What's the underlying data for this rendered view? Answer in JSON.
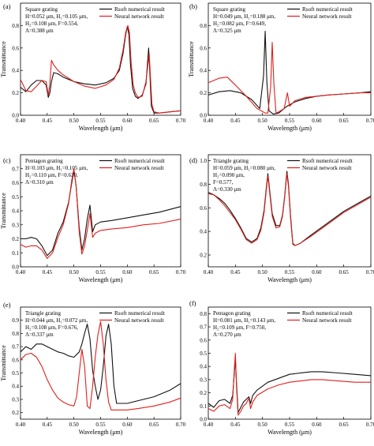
{
  "colors": {
    "rsoft": "#111111",
    "neural": "#e0201b"
  },
  "chart_data": [
    {
      "type": "line",
      "panel": "(a)",
      "params": [
        "Square grating",
        "H=0.052 μm, H₁=0.105 μm,",
        "H₂=0.108 μm, F=0.554,",
        "Λ=0.388 μm"
      ],
      "xlabel": "Wavelength (μm)",
      "ylabel": "Transmittance",
      "xlim": [
        0.4,
        0.7
      ],
      "ylim": [
        0,
        1.0
      ],
      "xticks": [
        "0.40",
        "0.45",
        "0.50",
        "0.55",
        "0.60",
        "0.65",
        "0.70"
      ],
      "yticks": [
        "0.0",
        "0.2",
        "0.4",
        "0.6",
        "0.8"
      ],
      "series": [
        {
          "name": "Rsoft numerical result",
          "color": "#111111",
          "x": [
            0.4,
            0.41,
            0.42,
            0.43,
            0.44,
            0.448,
            0.452,
            0.455,
            0.458,
            0.462,
            0.47,
            0.48,
            0.5,
            0.52,
            0.54,
            0.56,
            0.575,
            0.585,
            0.592,
            0.597,
            0.6,
            0.603,
            0.606,
            0.61,
            0.615,
            0.62,
            0.628,
            0.635,
            0.64,
            0.642,
            0.645,
            0.65,
            0.66,
            0.68,
            0.7
          ],
          "values": [
            0.25,
            0.21,
            0.27,
            0.31,
            0.31,
            0.27,
            0.16,
            0.2,
            0.3,
            0.38,
            0.37,
            0.34,
            0.3,
            0.28,
            0.27,
            0.29,
            0.33,
            0.4,
            0.55,
            0.72,
            0.79,
            0.72,
            0.45,
            0.24,
            0.17,
            0.15,
            0.18,
            0.28,
            0.6,
            0.4,
            0.08,
            0.02,
            0.02,
            0.03,
            0.04
          ]
        },
        {
          "name": "Neural network result",
          "color": "#e0201b",
          "x": [
            0.4,
            0.41,
            0.42,
            0.43,
            0.44,
            0.448,
            0.452,
            0.455,
            0.458,
            0.462,
            0.47,
            0.48,
            0.5,
            0.52,
            0.54,
            0.56,
            0.575,
            0.585,
            0.592,
            0.597,
            0.601,
            0.604,
            0.607,
            0.611,
            0.615,
            0.62,
            0.628,
            0.635,
            0.641,
            0.643,
            0.646,
            0.65,
            0.66,
            0.68,
            0.7
          ],
          "values": [
            0.32,
            0.22,
            0.21,
            0.26,
            0.31,
            0.3,
            0.18,
            0.28,
            0.49,
            0.45,
            0.4,
            0.36,
            0.3,
            0.26,
            0.24,
            0.27,
            0.32,
            0.42,
            0.58,
            0.74,
            0.8,
            0.74,
            0.48,
            0.27,
            0.2,
            0.16,
            0.17,
            0.3,
            0.55,
            0.38,
            0.1,
            0.03,
            0.02,
            0.03,
            0.04
          ]
        }
      ]
    },
    {
      "type": "line",
      "panel": "(b)",
      "params": [
        "Square grating",
        "H=0.049 μm, H₁=0.188 μm,",
        "H₂=0.082 μm, F=0.649,",
        "Λ=0.325 μm"
      ],
      "xlabel": "Wavelength (μm)",
      "ylabel": "Transmittance",
      "xlim": [
        0.4,
        0.7
      ],
      "ylim": [
        0,
        1.0
      ],
      "xticks": [
        "0.40",
        "0.45",
        "0.50",
        "0.55",
        "0.60",
        "0.65",
        "0.70"
      ],
      "yticks": [
        "0.0",
        "0.2",
        "0.4",
        "0.6",
        "0.8"
      ],
      "series": [
        {
          "name": "Rsoft numerical result",
          "color": "#111111",
          "x": [
            0.4,
            0.42,
            0.44,
            0.46,
            0.48,
            0.495,
            0.502,
            0.505,
            0.508,
            0.512,
            0.52,
            0.53,
            0.545,
            0.56,
            0.58,
            0.6,
            0.62,
            0.65,
            0.68,
            0.7
          ],
          "values": [
            0.18,
            0.21,
            0.22,
            0.2,
            0.14,
            0.06,
            0.35,
            0.75,
            0.3,
            0.04,
            0.01,
            0.02,
            0.08,
            0.12,
            0.15,
            0.17,
            0.18,
            0.19,
            0.2,
            0.21
          ]
        },
        {
          "name": "Neural network result",
          "color": "#e0201b",
          "x": [
            0.4,
            0.42,
            0.435,
            0.45,
            0.47,
            0.49,
            0.505,
            0.51,
            0.515,
            0.518,
            0.521,
            0.525,
            0.53,
            0.54,
            0.546,
            0.55,
            0.56,
            0.58,
            0.6,
            0.62,
            0.65,
            0.68,
            0.7
          ],
          "values": [
            0.29,
            0.33,
            0.34,
            0.27,
            0.17,
            0.06,
            0.02,
            0.02,
            0.25,
            0.65,
            0.28,
            0.02,
            0.03,
            0.06,
            0.2,
            0.08,
            0.13,
            0.16,
            0.17,
            0.18,
            0.19,
            0.2,
            0.2
          ]
        }
      ]
    },
    {
      "type": "line",
      "panel": "(c)",
      "params": [
        "Pentagon grating",
        "H=0.103 μm, H₁=0.105 μm,",
        "H₂=0.110 μm, F=0.630,",
        "Λ=0.310 μm"
      ],
      "xlabel": "Wavelength (μm)",
      "ylabel": "Transmittance",
      "xlim": [
        0.4,
        0.7
      ],
      "ylim": [
        0,
        0.8
      ],
      "xticks": [
        "0.40",
        "0.45",
        "0.50",
        "0.55",
        "0.60",
        "0.65",
        "0.70"
      ],
      "yticks": [
        "0.0",
        "0.1",
        "0.2",
        "0.3",
        "0.4",
        "0.5",
        "0.6",
        "0.7"
      ],
      "series": [
        {
          "name": "Rsoft numerical result",
          "color": "#111111",
          "x": [
            0.4,
            0.41,
            0.42,
            0.43,
            0.44,
            0.45,
            0.46,
            0.47,
            0.48,
            0.49,
            0.496,
            0.5,
            0.504,
            0.51,
            0.515,
            0.52,
            0.525,
            0.53,
            0.535,
            0.54,
            0.55,
            0.57,
            0.6,
            0.63,
            0.66,
            0.7
          ],
          "values": [
            0.2,
            0.2,
            0.21,
            0.2,
            0.15,
            0.08,
            0.12,
            0.24,
            0.32,
            0.46,
            0.6,
            0.69,
            0.58,
            0.28,
            0.12,
            0.2,
            0.34,
            0.44,
            0.25,
            0.3,
            0.32,
            0.33,
            0.35,
            0.37,
            0.39,
            0.43
          ]
        },
        {
          "name": "Neural network result",
          "color": "#e0201b",
          "x": [
            0.4,
            0.41,
            0.42,
            0.43,
            0.44,
            0.45,
            0.46,
            0.47,
            0.48,
            0.49,
            0.496,
            0.5,
            0.504,
            0.51,
            0.515,
            0.52,
            0.525,
            0.53,
            0.535,
            0.54,
            0.55,
            0.57,
            0.6,
            0.63,
            0.66,
            0.7
          ],
          "values": [
            0.16,
            0.14,
            0.15,
            0.15,
            0.12,
            0.06,
            0.1,
            0.21,
            0.3,
            0.45,
            0.62,
            0.7,
            0.58,
            0.25,
            0.09,
            0.15,
            0.26,
            0.38,
            0.21,
            0.24,
            0.26,
            0.27,
            0.28,
            0.3,
            0.31,
            0.34
          ]
        }
      ]
    },
    {
      "type": "line",
      "panel": "(d)",
      "params": [
        "Triangle grating",
        "H=0.059 μm, H₁=0.080 μm,",
        "H₂=0.090 μm,",
        "F=0.577,",
        "Λ=0.330 μm"
      ],
      "xlabel": "Wavelength (μm)",
      "ylabel": "",
      "xlim": [
        0.4,
        0.7
      ],
      "ylim": [
        0.1,
        1.05
      ],
      "xticks": [
        "0.40",
        "0.45",
        "0.50",
        "0.55",
        "0.60",
        "0.65",
        "0.70"
      ],
      "yticks": [
        "0.2",
        "0.4",
        "0.6",
        "0.8",
        "1.0"
      ],
      "series": [
        {
          "name": "Rsoft numerical result",
          "color": "#111111",
          "x": [
            0.4,
            0.41,
            0.42,
            0.43,
            0.44,
            0.45,
            0.46,
            0.47,
            0.48,
            0.49,
            0.497,
            0.503,
            0.507,
            0.51,
            0.513,
            0.518,
            0.525,
            0.532,
            0.537,
            0.541,
            0.545,
            0.548,
            0.552,
            0.556,
            0.56,
            0.57,
            0.59,
            0.62,
            0.65,
            0.7
          ],
          "values": [
            0.73,
            0.71,
            0.68,
            0.64,
            0.58,
            0.51,
            0.43,
            0.34,
            0.31,
            0.34,
            0.43,
            0.58,
            0.77,
            0.89,
            0.76,
            0.55,
            0.45,
            0.45,
            0.54,
            0.7,
            0.91,
            0.8,
            0.52,
            0.3,
            0.28,
            0.3,
            0.37,
            0.47,
            0.57,
            0.7
          ]
        },
        {
          "name": "Neural network result",
          "color": "#e0201b",
          "x": [
            0.4,
            0.41,
            0.42,
            0.43,
            0.44,
            0.45,
            0.46,
            0.47,
            0.48,
            0.49,
            0.497,
            0.503,
            0.507,
            0.51,
            0.513,
            0.518,
            0.525,
            0.532,
            0.537,
            0.541,
            0.545,
            0.548,
            0.552,
            0.556,
            0.56,
            0.57,
            0.59,
            0.62,
            0.65,
            0.7
          ],
          "values": [
            0.72,
            0.71,
            0.67,
            0.62,
            0.56,
            0.5,
            0.42,
            0.33,
            0.3,
            0.33,
            0.41,
            0.56,
            0.75,
            0.87,
            0.74,
            0.53,
            0.43,
            0.44,
            0.53,
            0.69,
            0.89,
            0.78,
            0.5,
            0.29,
            0.28,
            0.3,
            0.36,
            0.46,
            0.56,
            0.69
          ]
        }
      ]
    },
    {
      "type": "line",
      "panel": "(e)",
      "params": [
        "Triangle grating",
        "H=0.044 μm, H₁=0.072 μm,",
        "H₂=0.108 μm, F=0.676,",
        "Λ=0.337 μm"
      ],
      "xlabel": "Wavelength (μm)",
      "ylabel": "Transmittance",
      "xlim": [
        0.4,
        0.7
      ],
      "ylim": [
        0.15,
        1.0
      ],
      "xticks": [
        "0.40",
        "0.45",
        "0.50",
        "0.55",
        "0.60",
        "0.65",
        "0.70"
      ],
      "yticks": [
        "0.2",
        "0.3",
        "0.4",
        "0.5",
        "0.6",
        "0.7",
        "0.8",
        "0.9"
      ],
      "series": [
        {
          "name": "Rsoft numerical result",
          "color": "#111111",
          "x": [
            0.4,
            0.41,
            0.42,
            0.43,
            0.44,
            0.45,
            0.46,
            0.47,
            0.48,
            0.49,
            0.5,
            0.51,
            0.515,
            0.52,
            0.525,
            0.53,
            0.535,
            0.54,
            0.545,
            0.55,
            0.555,
            0.56,
            0.565,
            0.57,
            0.575,
            0.58,
            0.6,
            0.62,
            0.65,
            0.68,
            0.7
          ],
          "values": [
            0.66,
            0.7,
            0.68,
            0.72,
            0.72,
            0.7,
            0.68,
            0.66,
            0.65,
            0.63,
            0.62,
            0.66,
            0.72,
            0.8,
            0.87,
            0.76,
            0.52,
            0.4,
            0.3,
            0.37,
            0.55,
            0.78,
            0.87,
            0.72,
            0.4,
            0.27,
            0.27,
            0.29,
            0.32,
            0.37,
            0.42
          ]
        },
        {
          "name": "Neural network result",
          "color": "#e0201b",
          "x": [
            0.4,
            0.41,
            0.42,
            0.43,
            0.44,
            0.45,
            0.46,
            0.47,
            0.48,
            0.49,
            0.5,
            0.505,
            0.51,
            0.515,
            0.52,
            0.525,
            0.53,
            0.535,
            0.54,
            0.545,
            0.55,
            0.555,
            0.56,
            0.565,
            0.57,
            0.58,
            0.6,
            0.62,
            0.65,
            0.68,
            0.7
          ],
          "values": [
            0.6,
            0.64,
            0.65,
            0.62,
            0.55,
            0.45,
            0.37,
            0.31,
            0.28,
            0.26,
            0.25,
            0.32,
            0.5,
            0.68,
            0.55,
            0.25,
            0.23,
            0.4,
            0.62,
            0.79,
            0.89,
            0.72,
            0.45,
            0.28,
            0.22,
            0.22,
            0.22,
            0.23,
            0.25,
            0.28,
            0.31
          ]
        }
      ]
    },
    {
      "type": "line",
      "panel": "(f)",
      "params": [
        "Pentagon grating",
        "H=0.081 μm, H₁=0.143 μm,",
        "H₂=0.109 μm, F=0.750,",
        "Λ=0.270 μm"
      ],
      "xlabel": "Wavelength (μm)",
      "ylabel": "",
      "xlim": [
        0.4,
        0.7
      ],
      "ylim": [
        0,
        0.85
      ],
      "xticks": [
        "0.40",
        "0.45",
        "0.50",
        "0.55",
        "0.60",
        "0.65",
        "0.70"
      ],
      "yticks": [
        "0.0",
        "0.1",
        "0.2",
        "0.3",
        "0.4",
        "0.5",
        "0.6",
        "0.7",
        "0.8"
      ],
      "series": [
        {
          "name": "Rsoft numerical result",
          "color": "#111111",
          "x": [
            0.4,
            0.41,
            0.42,
            0.43,
            0.44,
            0.445,
            0.448,
            0.45,
            0.452,
            0.455,
            0.46,
            0.465,
            0.47,
            0.475,
            0.478,
            0.482,
            0.49,
            0.51,
            0.53,
            0.55,
            0.57,
            0.59,
            0.61,
            0.64,
            0.67,
            0.7
          ],
          "values": [
            0.12,
            0.09,
            0.14,
            0.15,
            0.12,
            0.18,
            0.35,
            0.46,
            0.28,
            0.05,
            0.09,
            0.13,
            0.15,
            0.17,
            0.12,
            0.18,
            0.22,
            0.28,
            0.31,
            0.34,
            0.35,
            0.36,
            0.36,
            0.35,
            0.34,
            0.33
          ]
        },
        {
          "name": "Neural network result",
          "color": "#e0201b",
          "x": [
            0.4,
            0.41,
            0.42,
            0.43,
            0.44,
            0.445,
            0.448,
            0.45,
            0.452,
            0.455,
            0.46,
            0.465,
            0.47,
            0.475,
            0.478,
            0.482,
            0.49,
            0.51,
            0.53,
            0.55,
            0.57,
            0.59,
            0.61,
            0.64,
            0.67,
            0.7
          ],
          "values": [
            0.08,
            0.06,
            0.1,
            0.11,
            0.08,
            0.15,
            0.38,
            0.5,
            0.25,
            0.03,
            0.06,
            0.1,
            0.12,
            0.16,
            0.08,
            0.13,
            0.18,
            0.23,
            0.26,
            0.28,
            0.29,
            0.3,
            0.3,
            0.29,
            0.28,
            0.28
          ]
        }
      ]
    }
  ]
}
